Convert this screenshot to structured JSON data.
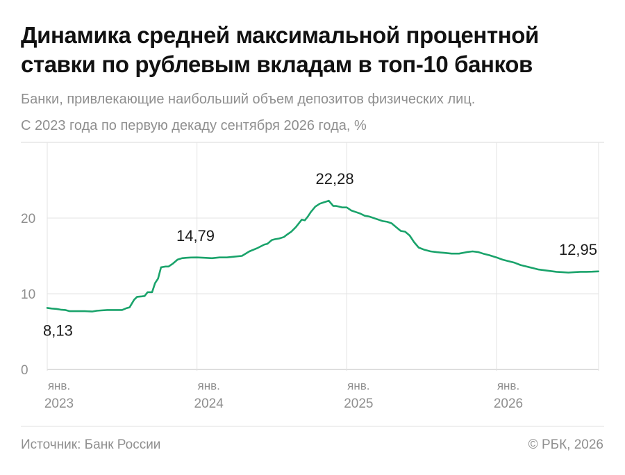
{
  "header": {
    "title_line1": "Динамика средней максимальной процентной",
    "title_line2": "ставки по рублевым вкладам в топ-10 банков",
    "subtitle_line1": "Банки, привлекающие наибольший объем депозитов физических лиц.",
    "subtitle_line2": "С 2023 года по первую декаду сентября 2026 года, %"
  },
  "footer": {
    "source": "Источник: Банк России",
    "copyright": "© РБК, 2026"
  },
  "chart_data": {
    "type": "line",
    "ylim": [
      0,
      30
    ],
    "xlim": [
      2023.0,
      2026.7
    ],
    "yticks": [
      {
        "value": 0,
        "label": "0"
      },
      {
        "value": 10,
        "label": "10"
      },
      {
        "value": 20,
        "label": "20"
      }
    ],
    "xticks": [
      {
        "value": 2023.0,
        "month": "янв.",
        "year": "2023"
      },
      {
        "value": 2024.0,
        "month": "янв.",
        "year": "2024"
      },
      {
        "value": 2025.0,
        "month": "янв.",
        "year": "2025"
      },
      {
        "value": 2026.0,
        "month": "янв.",
        "year": "2026"
      }
    ],
    "grid": "vertical-and-horizontal",
    "line_color": "#1aa36b",
    "annotations": [
      {
        "x": 2023.0,
        "y": 8.13,
        "label": "8,13",
        "position": "below"
      },
      {
        "x": 2023.99,
        "y": 14.79,
        "label": "14,79",
        "position": "above"
      },
      {
        "x": 2024.92,
        "y": 22.28,
        "label": "22,28",
        "position": "above"
      },
      {
        "x": 2026.68,
        "y": 12.95,
        "label": "12,95",
        "position": "above"
      }
    ],
    "series": [
      {
        "x": [
          2023.0,
          2023.03,
          2023.06,
          2023.09,
          2023.12,
          2023.15,
          2023.2,
          2023.25,
          2023.3,
          2023.33,
          2023.36,
          2023.4,
          2023.45,
          2023.5,
          2023.53,
          2023.55,
          2023.58,
          2023.6,
          2023.63,
          2023.65,
          2023.67,
          2023.7,
          2023.72,
          2023.74,
          2023.76,
          2023.79,
          2023.81,
          2023.84,
          2023.87,
          2023.9,
          2023.93,
          2023.96,
          2024.0,
          2024.05,
          2024.1,
          2024.15,
          2024.2,
          2024.25,
          2024.3,
          2024.35,
          2024.4,
          2024.45,
          2024.47,
          2024.5,
          2024.52,
          2024.55,
          2024.58,
          2024.6,
          2024.63,
          2024.66,
          2024.7,
          2024.72,
          2024.74,
          2024.76,
          2024.79,
          2024.82,
          2024.85,
          2024.88,
          2024.91,
          2024.93,
          2024.95,
          2024.97,
          2025.0,
          2025.03,
          2025.06,
          2025.09,
          2025.12,
          2025.15,
          2025.18,
          2025.21,
          2025.24,
          2025.27,
          2025.3,
          2025.33,
          2025.36,
          2025.39,
          2025.42,
          2025.45,
          2025.48,
          2025.52,
          2025.56,
          2025.6,
          2025.65,
          2025.7,
          2025.75,
          2025.8,
          2025.84,
          2025.88,
          2025.91,
          2025.95,
          2026.0,
          2026.04,
          2026.08,
          2026.12,
          2026.16,
          2026.2,
          2026.24,
          2026.28,
          2026.32,
          2026.36,
          2026.4,
          2026.44,
          2026.48,
          2026.52,
          2026.56,
          2026.6,
          2026.64,
          2026.68
        ],
        "values": [
          8.13,
          8.05,
          8.0,
          7.9,
          7.85,
          7.7,
          7.7,
          7.7,
          7.65,
          7.75,
          7.8,
          7.85,
          7.85,
          7.85,
          8.1,
          8.2,
          9.2,
          9.6,
          9.65,
          9.7,
          10.2,
          10.2,
          11.4,
          12.0,
          13.5,
          13.6,
          13.6,
          14.0,
          14.5,
          14.7,
          14.75,
          14.79,
          14.8,
          14.75,
          14.7,
          14.8,
          14.8,
          14.9,
          15.0,
          15.6,
          16.0,
          16.5,
          16.6,
          17.1,
          17.2,
          17.3,
          17.5,
          17.8,
          18.2,
          18.8,
          19.8,
          19.7,
          20.2,
          20.8,
          21.5,
          21.9,
          22.1,
          22.28,
          21.6,
          21.6,
          21.5,
          21.4,
          21.4,
          21.0,
          20.8,
          20.6,
          20.3,
          20.2,
          20.0,
          19.8,
          19.6,
          19.5,
          19.3,
          18.8,
          18.3,
          18.2,
          17.7,
          16.8,
          16.1,
          15.8,
          15.6,
          15.5,
          15.4,
          15.3,
          15.3,
          15.5,
          15.6,
          15.5,
          15.3,
          15.1,
          14.8,
          14.5,
          14.3,
          14.1,
          13.8,
          13.6,
          13.4,
          13.2,
          13.1,
          13.0,
          12.9,
          12.85,
          12.8,
          12.85,
          12.9,
          12.9,
          12.92,
          12.95
        ]
      }
    ]
  }
}
